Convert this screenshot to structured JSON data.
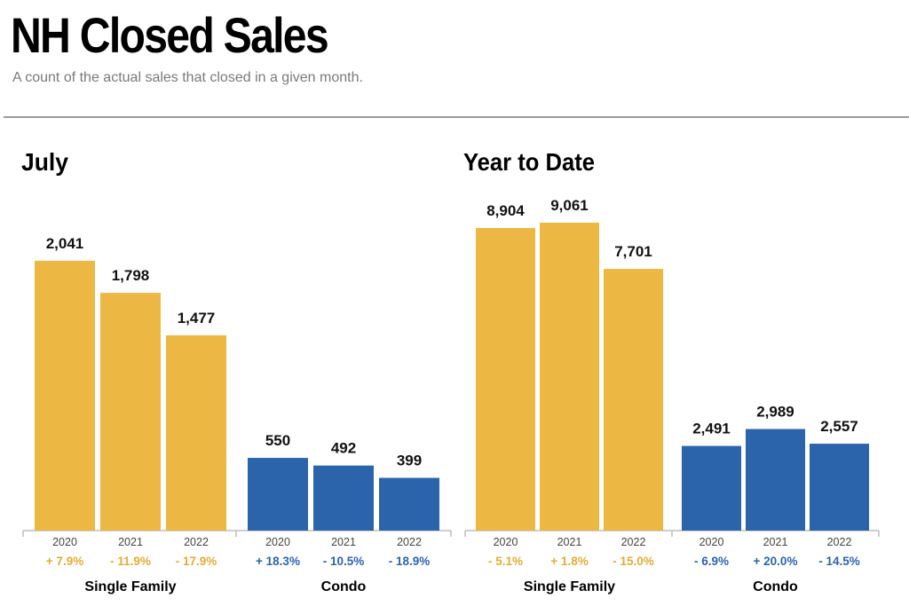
{
  "header": {
    "title": "NH Closed Sales",
    "subtitle": "A count of the actual sales that closed in a given month."
  },
  "colors": {
    "single_family": "#ecb843",
    "condo": "#2c64ac",
    "single_family_change": "#e0ad36",
    "condo_change": "#2c64ac",
    "axis": "#bdbdbd"
  },
  "chart_data": [
    {
      "type": "bar",
      "title": "July",
      "groups": [
        {
          "name": "Single Family",
          "categories": [
            "2020",
            "2021",
            "2022"
          ],
          "values": [
            2041,
            1798,
            1477
          ],
          "labels": [
            "2,041",
            "1,798",
            "1,477"
          ],
          "changes": [
            "+ 7.9%",
            "- 11.9%",
            "- 17.9%"
          ]
        },
        {
          "name": "Condo",
          "categories": [
            "2020",
            "2021",
            "2022"
          ],
          "values": [
            550,
            492,
            399
          ],
          "labels": [
            "550",
            "492",
            "399"
          ],
          "changes": [
            "+ 18.3%",
            "- 10.5%",
            "- 18.9%"
          ]
        }
      ]
    },
    {
      "type": "bar",
      "title": "Year to Date",
      "groups": [
        {
          "name": "Single Family",
          "categories": [
            "2020",
            "2021",
            "2022"
          ],
          "values": [
            8904,
            9061,
            7701
          ],
          "labels": [
            "8,904",
            "9,061",
            "7,701"
          ],
          "changes": [
            "- 5.1%",
            "+ 1.8%",
            "- 15.0%"
          ]
        },
        {
          "name": "Condo",
          "categories": [
            "2020",
            "2021",
            "2022"
          ],
          "values": [
            2491,
            2989,
            2557
          ],
          "labels": [
            "2,491",
            "2,989",
            "2,557"
          ],
          "changes": [
            "- 6.9%",
            "+ 20.0%",
            "- 14.5%"
          ]
        }
      ]
    }
  ]
}
